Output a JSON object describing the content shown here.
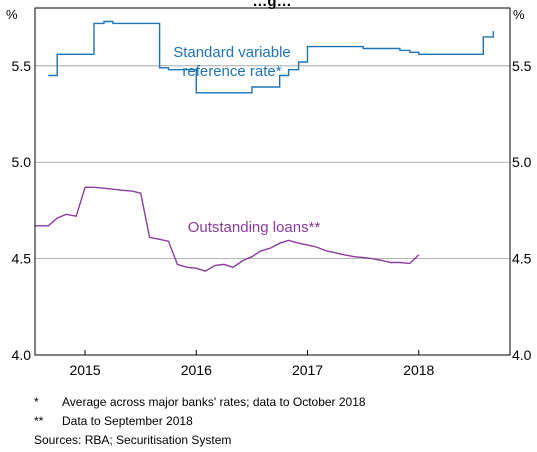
{
  "chart_data": {
    "type": "line",
    "title": "…g…",
    "y_unit_left": "%",
    "y_unit_right": "%",
    "ylim": [
      4.0,
      5.8
    ],
    "yticks": [
      "4.0",
      "4.5",
      "5.0",
      "5.5"
    ],
    "xlim": [
      2014.55,
      2018.82
    ],
    "xticks": [
      {
        "label": "2015",
        "x": 2015.0
      },
      {
        "label": "2016",
        "x": 2016.0
      },
      {
        "label": "2017",
        "x": 2017.0
      },
      {
        "label": "2018",
        "x": 2018.0
      }
    ],
    "grid": "horizontal",
    "series": [
      {
        "name": "Standard variable reference rate*",
        "label_lines": [
          "Standard variable",
          "reference rate*"
        ],
        "color": "#1f73b7",
        "step": true,
        "points": [
          [
            2014.67,
            5.45
          ],
          [
            2014.75,
            5.56
          ],
          [
            2015.0,
            5.56
          ],
          [
            2015.08,
            5.72
          ],
          [
            2015.17,
            5.73
          ],
          [
            2015.25,
            5.72
          ],
          [
            2015.58,
            5.72
          ],
          [
            2015.67,
            5.49
          ],
          [
            2015.75,
            5.48
          ],
          [
            2015.92,
            5.48
          ],
          [
            2016.0,
            5.36
          ],
          [
            2016.42,
            5.36
          ],
          [
            2016.5,
            5.39
          ],
          [
            2016.67,
            5.39
          ],
          [
            2016.75,
            5.45
          ],
          [
            2016.83,
            5.48
          ],
          [
            2016.92,
            5.52
          ],
          [
            2017.0,
            5.6
          ],
          [
            2017.42,
            5.6
          ],
          [
            2017.5,
            5.59
          ],
          [
            2017.75,
            5.59
          ],
          [
            2017.83,
            5.58
          ],
          [
            2017.92,
            5.57
          ],
          [
            2018.0,
            5.56
          ],
          [
            2018.08,
            5.56
          ],
          [
            2018.5,
            5.56
          ],
          [
            2018.58,
            5.65
          ],
          [
            2018.67,
            5.68
          ]
        ]
      },
      {
        "name": "Outstanding loans**",
        "label_lines": [
          "Outstanding loans**"
        ],
        "color": "#8a3c9c",
        "step": false,
        "points": [
          [
            2014.55,
            4.67
          ],
          [
            2014.67,
            4.67
          ],
          [
            2014.75,
            4.71
          ],
          [
            2014.83,
            4.73
          ],
          [
            2014.92,
            4.72
          ],
          [
            2015.0,
            4.87
          ],
          [
            2015.08,
            4.87
          ],
          [
            2015.17,
            4.865
          ],
          [
            2015.25,
            4.86
          ],
          [
            2015.33,
            4.855
          ],
          [
            2015.42,
            4.85
          ],
          [
            2015.5,
            4.84
          ],
          [
            2015.58,
            4.61
          ],
          [
            2015.67,
            4.6
          ],
          [
            2015.75,
            4.59
          ],
          [
            2015.83,
            4.47
          ],
          [
            2015.92,
            4.455
          ],
          [
            2016.0,
            4.45
          ],
          [
            2016.08,
            4.435
          ],
          [
            2016.17,
            4.465
          ],
          [
            2016.25,
            4.47
          ],
          [
            2016.33,
            4.455
          ],
          [
            2016.42,
            4.49
          ],
          [
            2016.5,
            4.51
          ],
          [
            2016.58,
            4.54
          ],
          [
            2016.67,
            4.555
          ],
          [
            2016.75,
            4.58
          ],
          [
            2016.83,
            4.595
          ],
          [
            2016.92,
            4.58
          ],
          [
            2017.0,
            4.57
          ],
          [
            2017.08,
            4.56
          ],
          [
            2017.17,
            4.54
          ],
          [
            2017.25,
            4.53
          ],
          [
            2017.33,
            4.52
          ],
          [
            2017.42,
            4.51
          ],
          [
            2017.5,
            4.505
          ],
          [
            2017.58,
            4.5
          ],
          [
            2017.67,
            4.49
          ],
          [
            2017.75,
            4.48
          ],
          [
            2017.83,
            4.48
          ],
          [
            2017.92,
            4.475
          ],
          [
            2018.0,
            4.52
          ]
        ]
      }
    ]
  },
  "footnotes": [
    {
      "mark": "*",
      "text": "Average across major banks' rates; data to October 2018"
    },
    {
      "mark": "**",
      "text": "Data to September 2018"
    }
  ],
  "sources": "Sources: RBA; Securitisation System"
}
